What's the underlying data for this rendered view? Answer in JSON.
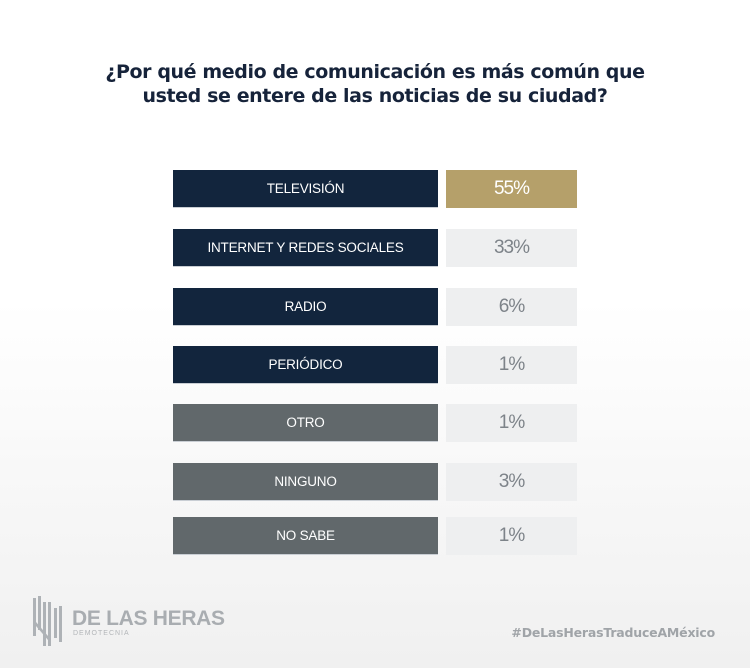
{
  "chart_data": {
    "type": "table",
    "title": "¿Por qué medio de comunicación es más común que usted se entere de las noticias de su ciudad?",
    "title_lines": [
      "¿Por qué medio de comunicación es más común que",
      "usted se entere de las noticias de su ciudad?"
    ],
    "categories": [
      "TELEVISIÓN",
      "INTERNET Y REDES SOCIALES",
      "RADIO",
      "PERIÓDICO",
      "OTRO",
      "NINGUNO",
      "NO SABE"
    ],
    "values": [
      55,
      33,
      6,
      1,
      1,
      3,
      1
    ],
    "value_labels": [
      "55%",
      "33%",
      "6%",
      "1%",
      "1%",
      "3%",
      "1%"
    ],
    "unit": "%",
    "highlight_index": 0
  },
  "colors": {
    "primary_label_bg": "#12253d",
    "secondary_label_bg": "#61686b",
    "highlight_value_bg": "#b5a06a",
    "value_bg": "#eeeff0"
  },
  "rows_style": [
    "primary",
    "primary",
    "primary",
    "primary",
    "secondary",
    "secondary",
    "secondary"
  ],
  "footer": {
    "logo_name": "DE LAS HERAS",
    "logo_sub": "DEMOTECNIA",
    "hashtag": "#DeLasHerasTraduceAMéxico"
  }
}
